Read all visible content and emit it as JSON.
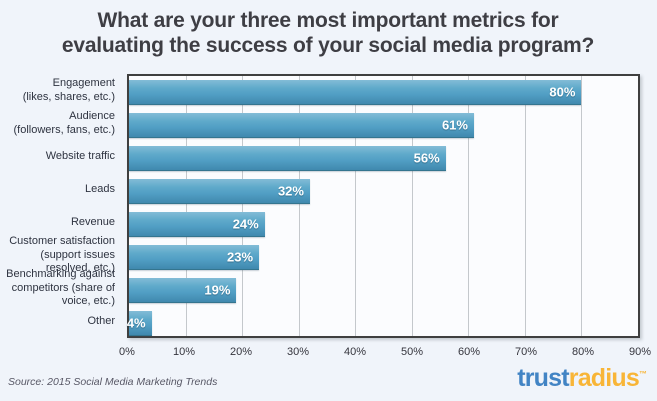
{
  "page": {
    "background_color": "#f0f4fa",
    "plot_background_color": "#fbfcfe",
    "plot_border_color": "#3f3f3f",
    "gridline_color": "#c4c8cc"
  },
  "chart_data": {
    "type": "bar",
    "orientation": "horizontal",
    "title": "What are your three most important metrics for\nevaluating the success of your social media program?",
    "categories": [
      "Engagement\n(likes, shares, etc.)",
      "Audience\n(followers, fans, etc.)",
      "Website traffic",
      "Leads",
      "Revenue",
      "Customer satisfaction\n(support issues resolved, etc.)",
      "Benchmarking against\ncompetitors (share of\nvoice, etc.)",
      "Other"
    ],
    "values": [
      80,
      61,
      56,
      32,
      24,
      23,
      19,
      4
    ],
    "value_labels": [
      "80%",
      "61%",
      "56%",
      "32%",
      "24%",
      "23%",
      "19%",
      "4%"
    ],
    "xlabel": "",
    "ylabel": "",
    "xlim": [
      0,
      90
    ],
    "x_ticks": [
      "0%",
      "10%",
      "20%",
      "30%",
      "40%",
      "50%",
      "60%",
      "70%",
      "80%",
      "90%"
    ],
    "grid": true,
    "legend": false,
    "bar_color": "#519ec4",
    "value_label_color": "#ffffff"
  },
  "footer": {
    "source": "Source: 2015 Social Media Marketing Trends",
    "logo": {
      "part1": "trust",
      "part2": "radius",
      "tm": "™",
      "part1_color": "#4284c4",
      "part2_color": "#f8b537"
    }
  }
}
